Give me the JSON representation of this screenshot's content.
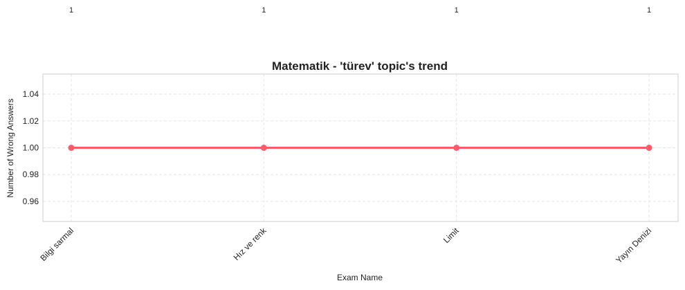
{
  "chart_data": {
    "type": "line",
    "title": "Matematik - 'türev' topic's trend",
    "xlabel": "Exam Name",
    "ylabel": "Number of Wrong Answers",
    "categories": [
      "Bilgi sarmal",
      "Hız ve renk",
      "Limit",
      "Yayın Denizi"
    ],
    "series": [
      {
        "values": [
          1,
          1,
          1,
          1
        ],
        "color": "#ff5a6a"
      }
    ],
    "data_labels": [
      "1",
      "1",
      "1",
      "1"
    ],
    "yticks": [
      "0.96",
      "0.98",
      "1.00",
      "1.02",
      "1.04"
    ],
    "ytick_values": [
      0.96,
      0.98,
      1.0,
      1.02,
      1.04
    ],
    "ylim": [
      0.945,
      1.055
    ],
    "grid": true,
    "colors": {
      "line": "#ff5a6a",
      "grid": "#e6e6e6",
      "frame": "#cccccc",
      "text": "#222222"
    }
  }
}
